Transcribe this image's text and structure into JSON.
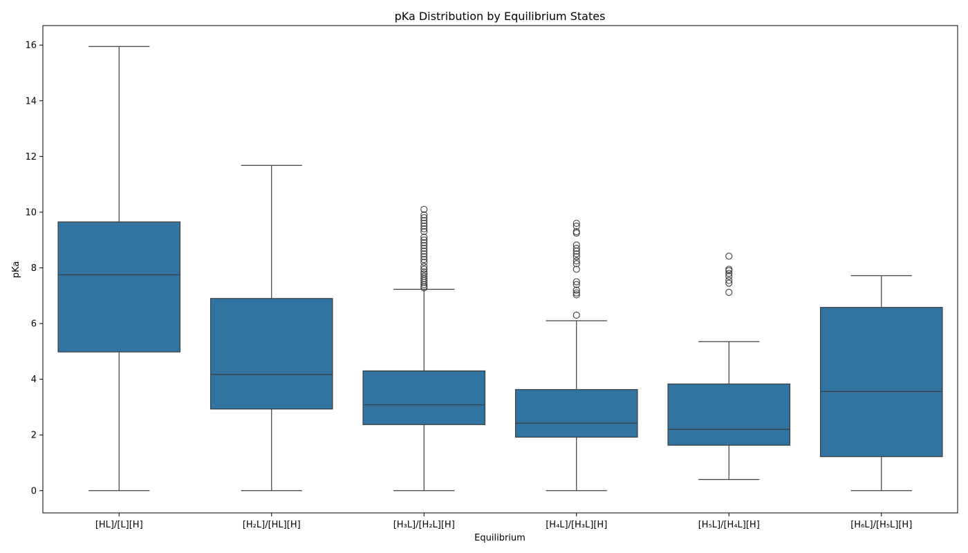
{
  "chart_data": {
    "type": "box",
    "title": "pKa Distribution by Equilibrium States",
    "xlabel": "Equilibrium",
    "ylabel": "pKa",
    "ylim": [
      -0.8,
      16.7
    ],
    "yticks": [
      0,
      2,
      4,
      6,
      8,
      10,
      12,
      14,
      16
    ],
    "ytick_labels": [
      "0",
      "2",
      "4",
      "6",
      "8",
      "10",
      "12",
      "14",
      "16"
    ],
    "grid": false,
    "box_color": "#3274a1",
    "line_color": "#3c3c3c",
    "categories": [
      "[HL]/[L][H]",
      "[H₂L]/[HL][H]",
      "[H₃L]/[H₂L][H]",
      "[H₄L]/[H₃L][H]",
      "[H₅L]/[H₄L][H]",
      "[H₆L]/[H₅L][H]"
    ],
    "boxes": [
      {
        "whisker_low": 0.0,
        "q1": 4.98,
        "median": 7.75,
        "q3": 9.65,
        "whisker_high": 15.95,
        "outliers": []
      },
      {
        "whisker_low": 0.0,
        "q1": 2.93,
        "median": 4.17,
        "q3": 6.9,
        "whisker_high": 11.68,
        "outliers": []
      },
      {
        "whisker_low": 0.0,
        "q1": 2.37,
        "median": 3.08,
        "q3": 4.3,
        "whisker_high": 7.23,
        "outliers": [
          7.28,
          7.33,
          7.4,
          7.48,
          7.55,
          7.62,
          7.7,
          7.78,
          7.85,
          7.95,
          8.05,
          8.2,
          8.3,
          8.4,
          8.5,
          8.6,
          8.7,
          8.8,
          8.9,
          9.0,
          9.1,
          9.3,
          9.4,
          9.5,
          9.6,
          9.7,
          9.8,
          9.9,
          10.1
        ]
      },
      {
        "whisker_low": 0.0,
        "q1": 1.92,
        "median": 2.42,
        "q3": 3.63,
        "whisker_high": 6.1,
        "outliers": [
          6.3,
          7.03,
          7.1,
          7.2,
          7.4,
          7.5,
          7.95,
          8.15,
          8.25,
          8.4,
          8.5,
          8.6,
          8.7,
          8.82,
          9.25,
          9.3,
          9.5,
          9.6
        ]
      },
      {
        "whisker_low": 0.4,
        "q1": 1.63,
        "median": 2.2,
        "q3": 3.83,
        "whisker_high": 5.35,
        "outliers": [
          7.12,
          7.45,
          7.55,
          7.7,
          7.8,
          7.9,
          7.95,
          8.42
        ]
      },
      {
        "whisker_low": 0.0,
        "q1": 1.22,
        "median": 3.56,
        "q3": 6.58,
        "whisker_high": 7.72,
        "outliers": []
      }
    ]
  }
}
